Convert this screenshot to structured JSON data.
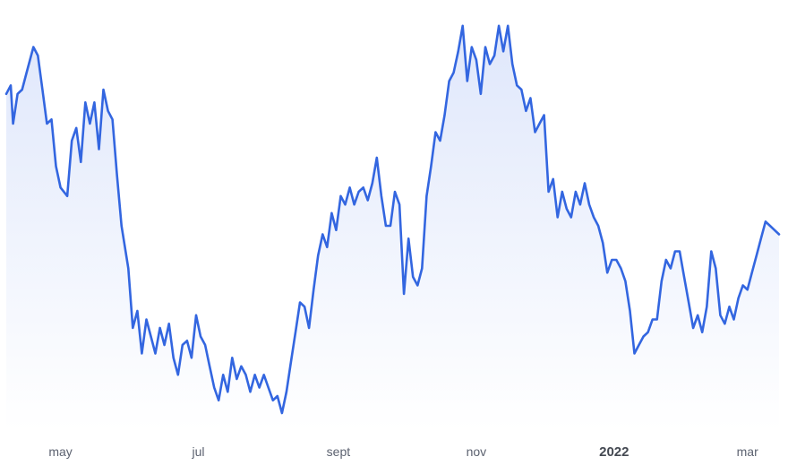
{
  "chart_data": {
    "type": "area",
    "title": "",
    "xlabel": "",
    "ylabel": "",
    "grid": false,
    "legend": "none",
    "ylim": [
      0,
      100
    ],
    "x_ticks": [
      {
        "label": "may",
        "date": "2021-05-01",
        "major": false
      },
      {
        "label": "jul",
        "date": "2021-07-01",
        "major": false
      },
      {
        "label": "sept",
        "date": "2021-09-01",
        "major": false
      },
      {
        "label": "nov",
        "date": "2021-11-01",
        "major": false
      },
      {
        "label": "2022",
        "date": "2022-01-01",
        "major": true
      },
      {
        "label": "mar",
        "date": "2022-03-01",
        "major": false
      }
    ],
    "series": [
      {
        "color": "#3366e0",
        "fill_top_color": "#dfe7fb",
        "fill_bottom_color": "#ffffff",
        "points": [
          [
            "2021-04-07",
            79
          ],
          [
            "2021-04-09",
            81
          ],
          [
            "2021-04-10",
            72
          ],
          [
            "2021-04-12",
            79
          ],
          [
            "2021-04-14",
            80
          ],
          [
            "2021-04-16",
            84
          ],
          [
            "2021-04-19",
            90
          ],
          [
            "2021-04-21",
            88
          ],
          [
            "2021-04-23",
            80
          ],
          [
            "2021-04-25",
            72
          ],
          [
            "2021-04-27",
            73
          ],
          [
            "2021-04-29",
            62
          ],
          [
            "2021-05-01",
            57
          ],
          [
            "2021-05-04",
            55
          ],
          [
            "2021-05-06",
            68
          ],
          [
            "2021-05-08",
            71
          ],
          [
            "2021-05-10",
            63
          ],
          [
            "2021-05-12",
            77
          ],
          [
            "2021-05-14",
            72
          ],
          [
            "2021-05-16",
            77
          ],
          [
            "2021-05-18",
            66
          ],
          [
            "2021-05-20",
            80
          ],
          [
            "2021-05-22",
            75
          ],
          [
            "2021-05-24",
            73
          ],
          [
            "2021-05-26",
            60
          ],
          [
            "2021-05-28",
            48
          ],
          [
            "2021-05-31",
            38
          ],
          [
            "2021-06-02",
            24
          ],
          [
            "2021-06-04",
            28
          ],
          [
            "2021-06-06",
            18
          ],
          [
            "2021-06-08",
            26
          ],
          [
            "2021-06-10",
            22
          ],
          [
            "2021-06-12",
            18
          ],
          [
            "2021-06-14",
            24
          ],
          [
            "2021-06-16",
            20
          ],
          [
            "2021-06-18",
            25
          ],
          [
            "2021-06-20",
            17
          ],
          [
            "2021-06-22",
            13
          ],
          [
            "2021-06-24",
            20
          ],
          [
            "2021-06-26",
            21
          ],
          [
            "2021-06-28",
            17
          ],
          [
            "2021-06-30",
            27
          ],
          [
            "2021-07-02",
            22
          ],
          [
            "2021-07-04",
            20
          ],
          [
            "2021-07-06",
            15
          ],
          [
            "2021-07-08",
            10
          ],
          [
            "2021-07-10",
            7
          ],
          [
            "2021-07-12",
            13
          ],
          [
            "2021-07-14",
            9
          ],
          [
            "2021-07-16",
            17
          ],
          [
            "2021-07-18",
            12
          ],
          [
            "2021-07-20",
            15
          ],
          [
            "2021-07-22",
            13
          ],
          [
            "2021-07-24",
            9
          ],
          [
            "2021-07-26",
            13
          ],
          [
            "2021-07-28",
            10
          ],
          [
            "2021-07-30",
            13
          ],
          [
            "2021-08-01",
            10
          ],
          [
            "2021-08-03",
            7
          ],
          [
            "2021-08-05",
            8
          ],
          [
            "2021-08-07",
            4
          ],
          [
            "2021-08-09",
            9
          ],
          [
            "2021-08-11",
            16
          ],
          [
            "2021-08-13",
            23
          ],
          [
            "2021-08-15",
            30
          ],
          [
            "2021-08-17",
            29
          ],
          [
            "2021-08-19",
            24
          ],
          [
            "2021-08-21",
            33
          ],
          [
            "2021-08-23",
            41
          ],
          [
            "2021-08-25",
            46
          ],
          [
            "2021-08-27",
            43
          ],
          [
            "2021-08-29",
            51
          ],
          [
            "2021-08-31",
            47
          ],
          [
            "2021-09-02",
            55
          ],
          [
            "2021-09-04",
            53
          ],
          [
            "2021-09-06",
            57
          ],
          [
            "2021-09-08",
            53
          ],
          [
            "2021-09-10",
            56
          ],
          [
            "2021-09-12",
            57
          ],
          [
            "2021-09-14",
            54
          ],
          [
            "2021-09-16",
            58
          ],
          [
            "2021-09-18",
            64
          ],
          [
            "2021-09-20",
            55
          ],
          [
            "2021-09-22",
            48
          ],
          [
            "2021-09-24",
            48
          ],
          [
            "2021-09-26",
            56
          ],
          [
            "2021-09-28",
            53
          ],
          [
            "2021-09-30",
            32
          ],
          [
            "2021-10-02",
            45
          ],
          [
            "2021-10-04",
            36
          ],
          [
            "2021-10-06",
            34
          ],
          [
            "2021-10-08",
            38
          ],
          [
            "2021-10-10",
            55
          ],
          [
            "2021-10-12",
            62
          ],
          [
            "2021-10-14",
            70
          ],
          [
            "2021-10-16",
            68
          ],
          [
            "2021-10-18",
            74
          ],
          [
            "2021-10-20",
            82
          ],
          [
            "2021-10-22",
            84
          ],
          [
            "2021-10-24",
            89
          ],
          [
            "2021-10-26",
            95
          ],
          [
            "2021-10-28",
            82
          ],
          [
            "2021-10-30",
            90
          ],
          [
            "2021-11-01",
            87
          ],
          [
            "2021-11-03",
            79
          ],
          [
            "2021-11-05",
            90
          ],
          [
            "2021-11-07",
            86
          ],
          [
            "2021-11-09",
            88
          ],
          [
            "2021-11-11",
            95
          ],
          [
            "2021-11-13",
            89
          ],
          [
            "2021-11-15",
            95
          ],
          [
            "2021-11-17",
            86
          ],
          [
            "2021-11-19",
            81
          ],
          [
            "2021-11-21",
            80
          ],
          [
            "2021-11-23",
            75
          ],
          [
            "2021-11-25",
            78
          ],
          [
            "2021-11-27",
            70
          ],
          [
            "2021-11-29",
            72
          ],
          [
            "2021-12-01",
            74
          ],
          [
            "2021-12-03",
            56
          ],
          [
            "2021-12-05",
            59
          ],
          [
            "2021-12-07",
            50
          ],
          [
            "2021-12-09",
            56
          ],
          [
            "2021-12-11",
            52
          ],
          [
            "2021-12-13",
            50
          ],
          [
            "2021-12-15",
            56
          ],
          [
            "2021-12-17",
            53
          ],
          [
            "2021-12-19",
            58
          ],
          [
            "2021-12-21",
            53
          ],
          [
            "2021-12-23",
            50
          ],
          [
            "2021-12-25",
            48
          ],
          [
            "2021-12-27",
            44
          ],
          [
            "2021-12-29",
            37
          ],
          [
            "2021-12-31",
            40
          ],
          [
            "2022-01-02",
            40
          ],
          [
            "2022-01-04",
            38
          ],
          [
            "2022-01-06",
            35
          ],
          [
            "2022-01-08",
            28
          ],
          [
            "2022-01-10",
            18
          ],
          [
            "2022-01-12",
            20
          ],
          [
            "2022-01-14",
            22
          ],
          [
            "2022-01-16",
            23
          ],
          [
            "2022-01-18",
            26
          ],
          [
            "2022-01-20",
            26
          ],
          [
            "2022-01-22",
            35
          ],
          [
            "2022-01-24",
            40
          ],
          [
            "2022-01-26",
            38
          ],
          [
            "2022-01-28",
            42
          ],
          [
            "2022-01-30",
            42
          ],
          [
            "2022-02-01",
            36
          ],
          [
            "2022-02-03",
            30
          ],
          [
            "2022-02-05",
            24
          ],
          [
            "2022-02-07",
            27
          ],
          [
            "2022-02-09",
            23
          ],
          [
            "2022-02-11",
            29
          ],
          [
            "2022-02-13",
            42
          ],
          [
            "2022-02-15",
            38
          ],
          [
            "2022-02-17",
            27
          ],
          [
            "2022-02-19",
            25
          ],
          [
            "2022-02-21",
            29
          ],
          [
            "2022-02-23",
            26
          ],
          [
            "2022-02-25",
            31
          ],
          [
            "2022-02-27",
            34
          ],
          [
            "2022-03-01",
            33
          ],
          [
            "2022-03-03",
            37
          ],
          [
            "2022-03-05",
            41
          ],
          [
            "2022-03-07",
            45
          ],
          [
            "2022-03-09",
            49
          ],
          [
            "2022-03-11",
            48
          ],
          [
            "2022-03-13",
            47
          ],
          [
            "2022-03-15",
            46
          ]
        ]
      }
    ]
  }
}
